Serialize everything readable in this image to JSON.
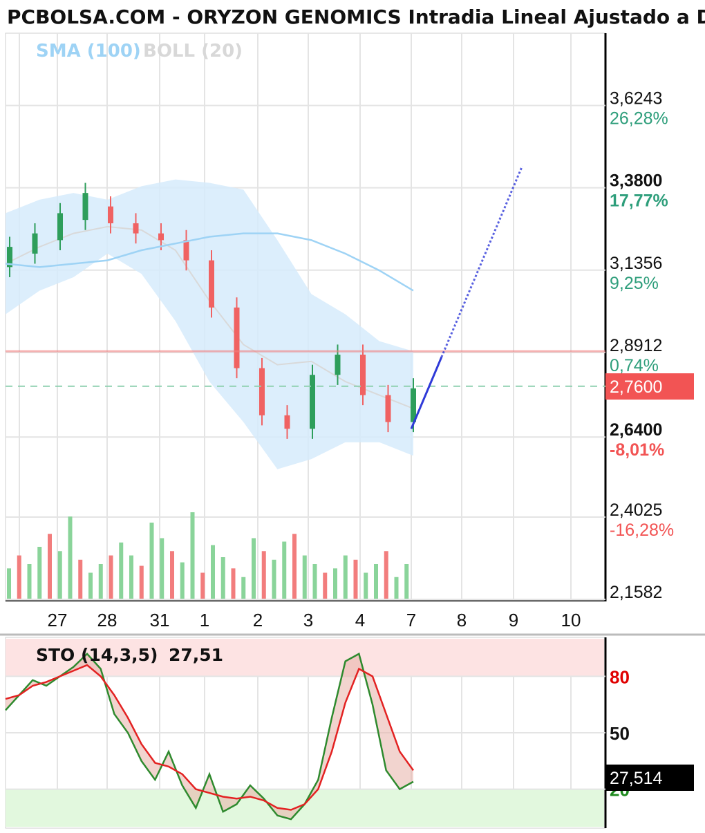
{
  "title": "PCBOLSA.COM - ORYZON GENOMICS Intradia Lineal Ajustado a Dividendos",
  "indicators": {
    "sma": "SMA (100)",
    "boll": "BOLL (20)"
  },
  "colors": {
    "up": "#2e9e5b",
    "down": "#f06262",
    "sma": "#9ed3f5",
    "boll_band": "#d6ebfb",
    "projection": "#2f3ad8",
    "reference": "#f08080"
  },
  "chart_data": [
    {
      "type": "candlestick",
      "title": "PCBOLSA.COM - ORYZON GENOMICS Intradia Lineal Ajustado a Dividendos",
      "x_ticks": [
        "27",
        "28",
        "31",
        "1",
        "2",
        "3",
        "4",
        "7",
        "8",
        "9",
        "10"
      ],
      "y_levels": [
        {
          "price": "3,6243",
          "pct": "26,28%",
          "value": 3.6243,
          "tone": "up"
        },
        {
          "price": "3,3800",
          "pct": "17,77%",
          "value": 3.38,
          "tone": "up",
          "bold": true
        },
        {
          "price": "3,1356",
          "pct": "9,25%",
          "value": 3.1356,
          "tone": "up"
        },
        {
          "price": "2,8912",
          "pct": "0,74%",
          "value": 2.8912,
          "tone": "up"
        },
        {
          "price": "2,6400",
          "pct": "-8,01%",
          "value": 2.64,
          "tone": "down",
          "bold": true
        },
        {
          "price": "2,4025",
          "pct": "-16,28%",
          "value": 2.4025,
          "tone": "down"
        },
        {
          "price": "2,1582",
          "pct": "",
          "value": 2.1582,
          "tone": "none"
        }
      ],
      "ylim": [
        2.1582,
        3.72
      ],
      "last_price": "2,7600",
      "last_value": 2.76,
      "reference_price": 2.87,
      "sma_100": [
        3.13,
        3.12,
        3.13,
        3.14,
        3.17,
        3.19,
        3.21,
        3.22,
        3.22,
        3.2,
        3.16,
        3.11,
        3.05
      ],
      "boll_upper": [
        3.28,
        3.32,
        3.34,
        3.32,
        3.36,
        3.38,
        3.37,
        3.35,
        3.2,
        3.04,
        2.98,
        2.9,
        2.87
      ],
      "boll_mid": [
        3.13,
        3.18,
        3.22,
        3.24,
        3.23,
        3.17,
        3.02,
        2.89,
        2.83,
        2.84,
        2.78,
        2.74,
        2.7
      ],
      "boll_lower": [
        2.98,
        3.05,
        3.09,
        3.16,
        3.1,
        2.96,
        2.78,
        2.66,
        2.52,
        2.55,
        2.6,
        2.6,
        2.56
      ],
      "candles": [
        [
          3.12,
          3.18
        ],
        [
          3.16,
          3.22
        ],
        [
          3.2,
          3.28
        ],
        [
          3.26,
          3.34
        ],
        [
          3.3,
          3.25
        ],
        [
          3.25,
          3.22
        ],
        [
          3.22,
          3.2
        ],
        [
          3.2,
          3.14
        ],
        [
          3.14,
          3.0
        ],
        [
          3.0,
          2.82
        ],
        [
          2.82,
          2.68
        ],
        [
          2.68,
          2.64
        ],
        [
          2.64,
          2.8
        ],
        [
          2.8,
          2.86
        ],
        [
          2.86,
          2.74
        ],
        [
          2.74,
          2.66
        ],
        [
          2.66,
          2.76
        ]
      ],
      "projection": {
        "from": [
          7.0,
          2.64
        ],
        "to": [
          9.2,
          3.42
        ],
        "turn_x": 7.6
      },
      "volume": [
        0.35,
        0.5,
        0.4,
        0.6,
        0.75,
        0.55,
        0.95,
        0.45,
        0.3,
        0.4,
        0.5,
        0.65,
        0.5,
        0.38,
        0.88,
        0.7,
        0.55,
        0.42,
        1.0,
        0.3,
        0.62,
        0.48,
        0.35,
        0.25,
        0.7,
        0.55,
        0.45,
        0.66,
        0.75,
        0.5,
        0.4,
        0.3,
        0.35,
        0.5,
        0.45,
        0.3,
        0.4,
        0.55,
        0.25,
        0.4
      ]
    },
    {
      "type": "line",
      "title": "STO (14,3,5)",
      "label": "STO (14,3,5)",
      "value": "27,51",
      "last_value": "27,514",
      "y_ticks": [
        "80",
        "50",
        "20"
      ],
      "ylim": [
        0,
        100
      ],
      "k": [
        62,
        70,
        78,
        75,
        80,
        85,
        92,
        84,
        60,
        50,
        35,
        25,
        40,
        22,
        10,
        28,
        8,
        12,
        22,
        15,
        6,
        4,
        12,
        25,
        58,
        88,
        92,
        65,
        30,
        20,
        24
      ],
      "d": [
        68,
        70,
        75,
        77,
        80,
        83,
        86,
        80,
        70,
        58,
        44,
        34,
        32,
        28,
        20,
        18,
        16,
        15,
        16,
        14,
        10,
        9,
        12,
        20,
        40,
        66,
        84,
        80,
        60,
        40,
        30
      ]
    }
  ]
}
